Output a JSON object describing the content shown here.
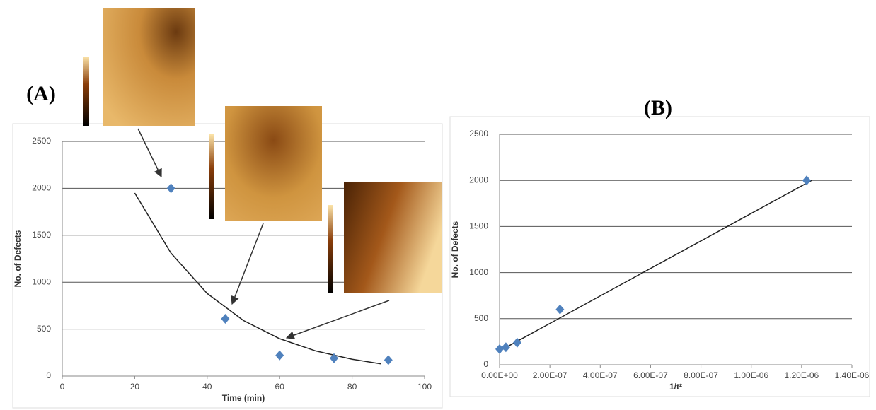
{
  "chart_data": [
    {
      "type": "scatter",
      "title": "(A)",
      "xlabel": "Time (min)",
      "ylabel": "No. of Defects",
      "x": [
        30,
        45,
        60,
        75,
        90
      ],
      "values": [
        2000,
        610,
        220,
        190,
        170
      ],
      "color": "#4f81bd",
      "trendline": {
        "x": [
          20,
          30,
          40,
          50,
          60,
          70,
          80,
          88
        ],
        "values": [
          1950,
          1310,
          880,
          592,
          398,
          267,
          179,
          130
        ]
      },
      "xlim": [
        0,
        100
      ],
      "xticks": [
        0,
        20,
        40,
        60,
        80,
        100
      ],
      "ylim": [
        0,
        2500
      ],
      "yticks": [
        0,
        500,
        1000,
        1500,
        2000,
        2500
      ],
      "grid": true
    },
    {
      "type": "scatter",
      "title": "(B)",
      "xlabel": "1/t²",
      "ylabel": "No. of Defects",
      "x": [
        0,
        2.5e-08,
        7e-08,
        2.4e-07,
        1.22e-06
      ],
      "values": [
        170,
        190,
        240,
        600,
        2000
      ],
      "color": "#4f81bd",
      "trendline": {
        "x": [
          0,
          1.24e-06
        ],
        "values": [
          150,
          2000
        ]
      },
      "xlim": [
        0,
        1.4e-06
      ],
      "xticks": [
        {
          "value": 0,
          "label": "0.00E+00"
        },
        {
          "value": 2e-07,
          "label": "2.00E-07"
        },
        {
          "value": 4e-07,
          "label": "4.00E-07"
        },
        {
          "value": 6e-07,
          "label": "6.00E-07"
        },
        {
          "value": 8e-07,
          "label": "8.00E-07"
        },
        {
          "value": 1e-06,
          "label": "1.00E-06"
        },
        {
          "value": 1.2e-06,
          "label": "1.20E-06"
        },
        {
          "value": 1.4e-06,
          "label": "1.40E-06"
        }
      ],
      "ylim": [
        0,
        2500
      ],
      "yticks": [
        0,
        500,
        1000,
        1500,
        2000,
        2500
      ],
      "grid": true
    }
  ]
}
